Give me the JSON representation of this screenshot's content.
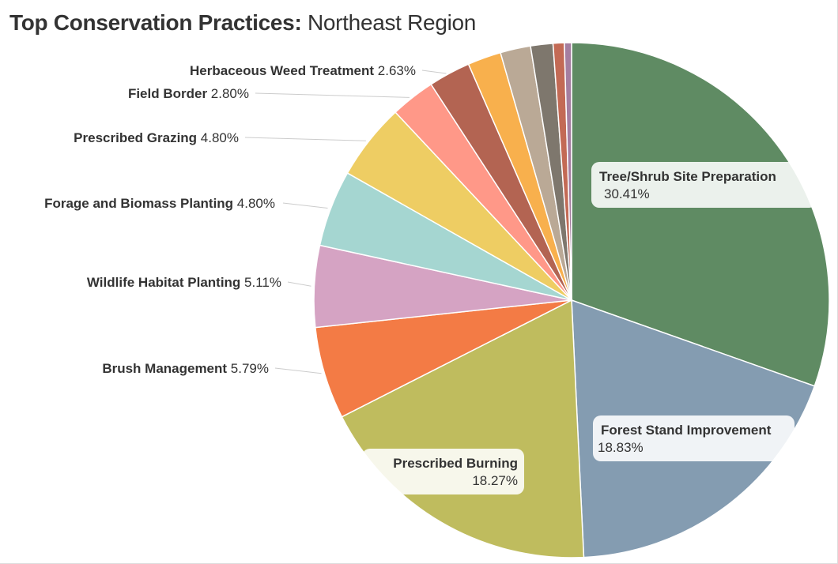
{
  "title": {
    "bold": "Top Conservation Practices:",
    "rest": "Northeast Region"
  },
  "chart_data": {
    "type": "pie",
    "title": "Top Conservation Practices: Northeast Region",
    "slices": [
      {
        "name": "Tree/Shrub Site Preparation",
        "value": 30.41,
        "label": "30.41%",
        "color": "#5f8b63",
        "label_style": "inside"
      },
      {
        "name": "Forest Stand Improvement",
        "value": 18.83,
        "label": "18.83%",
        "color": "#849cb1",
        "label_style": "inside"
      },
      {
        "name": "Prescribed Burning",
        "value": 18.27,
        "label": "18.27%",
        "color": "#bfbc5e",
        "label_style": "inside"
      },
      {
        "name": "Brush Management",
        "value": 5.79,
        "label": "5.79%",
        "color": "#f37b45",
        "label_style": "outside"
      },
      {
        "name": "Wildlife Habitat Planting",
        "value": 5.11,
        "label": "5.11%",
        "color": "#d5a3c3",
        "label_style": "outside"
      },
      {
        "name": "Forage and Biomass Planting ",
        "value": 4.8,
        "label": "4.80%",
        "color": "#a5d6d1",
        "label_style": "outside"
      },
      {
        "name": "Prescribed Grazing",
        "value": 4.8,
        "label": "4.80%",
        "color": "#eecd63",
        "label_style": "outside"
      },
      {
        "name": "Field Border",
        "value": 2.8,
        "label": "2.80%",
        "color": "#ff9888",
        "label_style": "outside"
      },
      {
        "name": "Herbaceous Weed Treatment",
        "value": 2.63,
        "label": "2.63%",
        "color": "#b36452",
        "label_style": "outside"
      },
      {
        "name": "",
        "value": 2.1,
        "label": "",
        "color": "#f8b04d",
        "label_style": "none"
      },
      {
        "name": "",
        "value": 1.9,
        "label": "",
        "color": "#baa996",
        "label_style": "none"
      },
      {
        "name": "",
        "value": 1.4,
        "label": "",
        "color": "#7e776d",
        "label_style": "none"
      },
      {
        "name": "",
        "value": 0.7,
        "label": "",
        "color": "#c36a55",
        "label_style": "none"
      },
      {
        "name": "",
        "value": 0.45,
        "label": "",
        "color": "#a57ea0",
        "label_style": "none"
      }
    ]
  }
}
